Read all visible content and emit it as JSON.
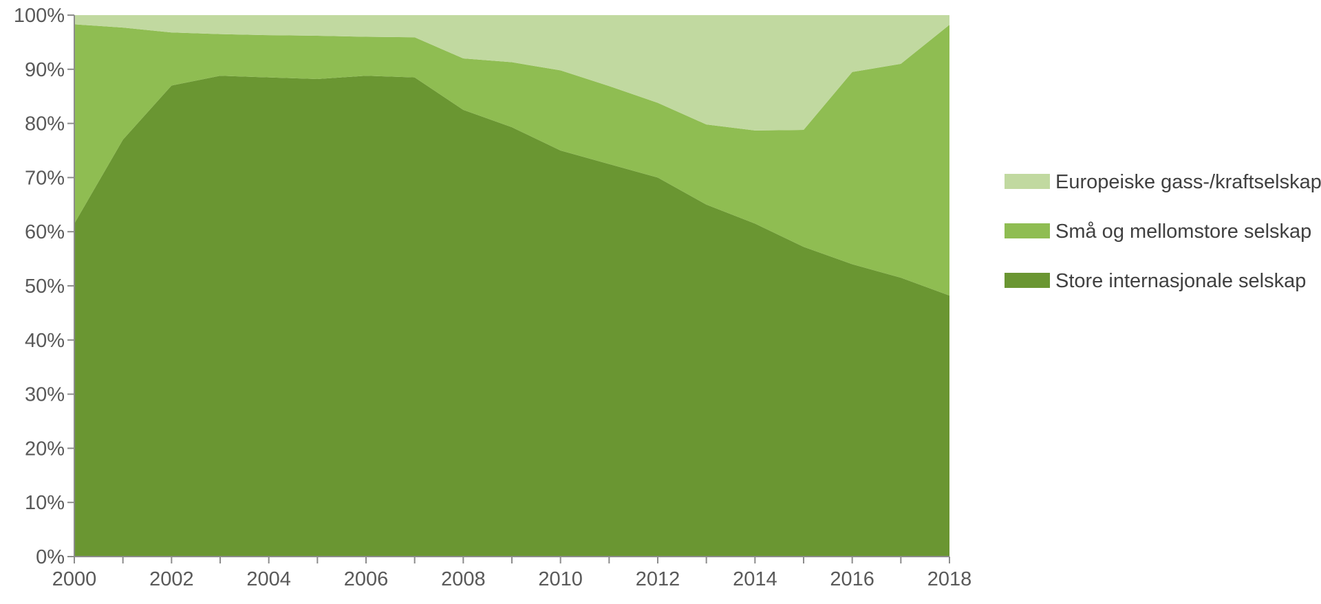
{
  "chart_data": {
    "type": "area",
    "stacked": true,
    "normalized": true,
    "title": "",
    "xlabel": "",
    "ylabel": "",
    "x": [
      2000,
      2001,
      2002,
      2003,
      2004,
      2005,
      2006,
      2007,
      2008,
      2009,
      2010,
      2011,
      2012,
      2013,
      2014,
      2015,
      2016,
      2017,
      2018
    ],
    "x_tick_labels": [
      "2000",
      "2002",
      "2004",
      "2006",
      "2008",
      "2010",
      "2012",
      "2014",
      "2016",
      "2018"
    ],
    "ylim": [
      0,
      100
    ],
    "y_tick_labels": [
      "0%",
      "10%",
      "20%",
      "30%",
      "40%",
      "50%",
      "60%",
      "70%",
      "80%",
      "90%",
      "100%"
    ],
    "grid": false,
    "legend_position": "right",
    "series": [
      {
        "name": "Store internasjonale selskap",
        "color": "#6a9632",
        "values": [
          61.5,
          77,
          87,
          88.8,
          88.5,
          88.2,
          88.8,
          88.5,
          82.5,
          79.3,
          75,
          72.5,
          70,
          65,
          61.5,
          57.2,
          54,
          51.5,
          48.2
        ]
      },
      {
        "name": "Små og mellomstore selskap",
        "color": "#8fbd52",
        "values": [
          36.8,
          20.7,
          9.8,
          7.7,
          7.8,
          8,
          7.2,
          7.4,
          9.5,
          12,
          14.8,
          14.4,
          13.8,
          14.8,
          17.2,
          21.6,
          35.5,
          39.5,
          50
        ]
      },
      {
        "name": "Europeiske gass-/kraftselskap",
        "color": "#c1d9a0",
        "values": [
          1.7,
          2.3,
          3.2,
          3.5,
          3.7,
          3.8,
          4,
          4.1,
          8,
          8.7,
          10.2,
          13.1,
          16.2,
          20.2,
          21.3,
          21.2,
          10.5,
          9,
          1.8
        ]
      }
    ],
    "legend_order": [
      "Europeiske gass-/kraftselskap",
      "Små og mellomstore selskap",
      "Store internasjonale selskap"
    ]
  }
}
